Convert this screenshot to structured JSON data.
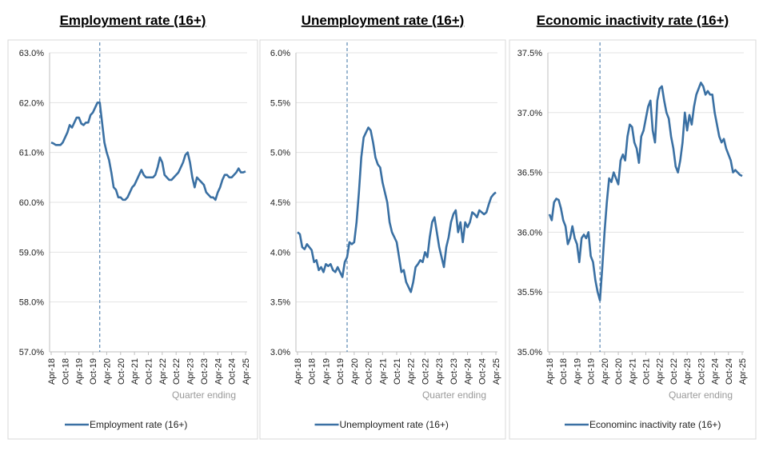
{
  "chart_data": [
    {
      "type": "line",
      "title": "Employment rate (16+)",
      "x_label": "Quarter ending",
      "categories": [
        "Apr-18",
        null,
        null,
        null,
        null,
        null,
        "Oct-18",
        null,
        null,
        null,
        null,
        null,
        "Apr-19",
        null,
        null,
        null,
        null,
        null,
        "Oct-19",
        null,
        null,
        null,
        null,
        null,
        "Apr-20",
        null,
        null,
        null,
        null,
        null,
        "Oct-20",
        null,
        null,
        null,
        null,
        null,
        "Apr-21",
        null,
        null,
        null,
        null,
        null,
        "Oct-21",
        null,
        null,
        null,
        null,
        null,
        "Apr-22",
        null,
        null,
        null,
        null,
        null,
        "Oct-22",
        null,
        null,
        null,
        null,
        null,
        "Apr-23",
        null,
        null,
        null,
        null,
        null,
        "Oct-23",
        null,
        null,
        null,
        null,
        null,
        "Apr-24",
        null,
        null,
        null,
        null,
        null,
        "Oct-24",
        null,
        null,
        null,
        null,
        null,
        "Apr-25"
      ],
      "series": [
        {
          "name": "Employment rate (16+)",
          "color": "#3a70a3",
          "values": [
            61.2,
            61.18,
            61.15,
            61.15,
            61.15,
            61.2,
            61.3,
            61.4,
            61.55,
            61.5,
            61.6,
            61.7,
            61.7,
            61.58,
            61.55,
            61.6,
            61.6,
            61.75,
            61.8,
            61.9,
            62.0,
            62.0,
            61.6,
            61.2,
            61.0,
            60.85,
            60.6,
            60.3,
            60.25,
            60.1,
            60.1,
            60.05,
            60.05,
            60.1,
            60.2,
            60.3,
            60.35,
            60.45,
            60.55,
            60.65,
            60.55,
            60.5,
            60.5,
            60.5,
            60.5,
            60.55,
            60.7,
            60.9,
            60.8,
            60.55,
            60.5,
            60.45,
            60.45,
            60.5,
            60.55,
            60.6,
            60.7,
            60.8,
            60.95,
            61.0,
            60.8,
            60.5,
            60.3,
            60.5,
            60.45,
            60.4,
            60.35,
            60.2,
            60.15,
            60.1,
            60.1,
            60.05,
            60.2,
            60.3,
            60.45,
            60.55,
            60.55,
            60.5,
            60.5,
            60.55,
            60.6,
            60.68,
            60.6,
            60.6,
            60.62
          ]
        }
      ],
      "ylim": [
        57,
        63
      ],
      "yticks": [
        {
          "value": 57,
          "label": "57.0%"
        },
        {
          "value": 58,
          "label": "58.0%"
        },
        {
          "value": 59,
          "label": "59.0%"
        },
        {
          "value": 60,
          "label": "60.0%"
        },
        {
          "value": 61,
          "label": "61.0%"
        },
        {
          "value": 62,
          "label": "62.0%"
        },
        {
          "value": 63,
          "label": "63.0%"
        }
      ],
      "grid": true,
      "vline_index": 21,
      "legend": "bottom"
    },
    {
      "type": "line",
      "title": "Unemployment rate (16+)",
      "x_label": "Quarter ending",
      "categories": [
        "Apr-18",
        null,
        null,
        null,
        null,
        null,
        "Oct-18",
        null,
        null,
        null,
        null,
        null,
        "Apr-19",
        null,
        null,
        null,
        null,
        null,
        "Oct-19",
        null,
        null,
        null,
        null,
        null,
        "Apr-20",
        null,
        null,
        null,
        null,
        null,
        "Oct-20",
        null,
        null,
        null,
        null,
        null,
        "Apr-21",
        null,
        null,
        null,
        null,
        null,
        "Oct-21",
        null,
        null,
        null,
        null,
        null,
        "Apr-22",
        null,
        null,
        null,
        null,
        null,
        "Oct-22",
        null,
        null,
        null,
        null,
        null,
        "Apr-23",
        null,
        null,
        null,
        null,
        null,
        "Oct-23",
        null,
        null,
        null,
        null,
        null,
        "Apr-24",
        null,
        null,
        null,
        null,
        null,
        "Oct-24",
        null,
        null,
        null,
        null,
        null,
        "Apr-25"
      ],
      "series": [
        {
          "name": "Unemployment rate (16+)",
          "color": "#3a70a3",
          "values": [
            4.2,
            4.18,
            4.05,
            4.03,
            4.08,
            4.05,
            4.02,
            3.9,
            3.92,
            3.82,
            3.85,
            3.8,
            3.88,
            3.86,
            3.88,
            3.82,
            3.8,
            3.85,
            3.8,
            3.75,
            3.9,
            3.95,
            4.1,
            4.08,
            4.1,
            4.3,
            4.6,
            4.95,
            5.15,
            5.2,
            5.25,
            5.22,
            5.1,
            4.95,
            4.88,
            4.85,
            4.7,
            4.6,
            4.5,
            4.3,
            4.2,
            4.15,
            4.1,
            3.95,
            3.8,
            3.82,
            3.7,
            3.65,
            3.6,
            3.7,
            3.85,
            3.88,
            3.92,
            3.9,
            4.0,
            3.95,
            4.15,
            4.3,
            4.35,
            4.2,
            4.05,
            3.95,
            3.85,
            4.05,
            4.15,
            4.3,
            4.38,
            4.42,
            4.2,
            4.3,
            4.1,
            4.3,
            4.25,
            4.3,
            4.4,
            4.38,
            4.35,
            4.42,
            4.4,
            4.38,
            4.4,
            4.48,
            4.55,
            4.58,
            4.6
          ]
        }
      ],
      "ylim": [
        3,
        6
      ],
      "yticks": [
        {
          "value": 3,
          "label": "3.0%"
        },
        {
          "value": 3.5,
          "label": "3.5%"
        },
        {
          "value": 4,
          "label": "4.0%"
        },
        {
          "value": 4.5,
          "label": "4.5%"
        },
        {
          "value": 5,
          "label": "5.0%"
        },
        {
          "value": 5.5,
          "label": "5.5%"
        },
        {
          "value": 6,
          "label": "6.0%"
        }
      ],
      "grid": true,
      "vline_index": 21,
      "legend": "bottom"
    },
    {
      "type": "line",
      "title": "Economic inactivity rate (16+)",
      "x_label": "Quarter ending",
      "categories": [
        "Apr-18",
        null,
        null,
        null,
        null,
        null,
        "Oct-18",
        null,
        null,
        null,
        null,
        null,
        "Apr-19",
        null,
        null,
        null,
        null,
        null,
        "Oct-19",
        null,
        null,
        null,
        null,
        null,
        "Apr-20",
        null,
        null,
        null,
        null,
        null,
        "Oct-20",
        null,
        null,
        null,
        null,
        null,
        "Apr-21",
        null,
        null,
        null,
        null,
        null,
        "Oct-21",
        null,
        null,
        null,
        null,
        null,
        "Apr-22",
        null,
        null,
        null,
        null,
        null,
        "Oct-22",
        null,
        null,
        null,
        null,
        null,
        "Apr-23",
        null,
        null,
        null,
        null,
        null,
        "Oct-23",
        null,
        null,
        null,
        null,
        null,
        "Apr-24",
        null,
        null,
        null,
        null,
        null,
        "Oct-24",
        null,
        null,
        null,
        null,
        null,
        "Apr-25"
      ],
      "series": [
        {
          "name": "Econominc inactivity rate (16+)",
          "color": "#3a70a3",
          "values": [
            36.15,
            36.1,
            36.25,
            36.28,
            36.27,
            36.2,
            36.1,
            36.05,
            35.9,
            35.95,
            36.05,
            35.95,
            35.9,
            35.75,
            35.95,
            35.98,
            35.95,
            36.0,
            35.8,
            35.75,
            35.6,
            35.5,
            35.43,
            35.7,
            36.0,
            36.25,
            36.45,
            36.42,
            36.5,
            36.45,
            36.4,
            36.6,
            36.65,
            36.6,
            36.8,
            36.9,
            36.88,
            36.75,
            36.7,
            36.58,
            36.8,
            36.85,
            36.95,
            37.05,
            37.1,
            36.85,
            36.75,
            37.1,
            37.2,
            37.22,
            37.1,
            37.0,
            36.95,
            36.8,
            36.7,
            36.55,
            36.5,
            36.6,
            36.75,
            37.0,
            36.85,
            36.98,
            36.9,
            37.05,
            37.15,
            37.2,
            37.25,
            37.22,
            37.15,
            37.18,
            37.15,
            37.15,
            37.0,
            36.9,
            36.8,
            36.75,
            36.78,
            36.7,
            36.65,
            36.6,
            36.5,
            36.52,
            36.5,
            36.48,
            36.47
          ]
        }
      ],
      "ylim": [
        35,
        37.5
      ],
      "yticks": [
        {
          "value": 35,
          "label": "35.0%"
        },
        {
          "value": 35.5,
          "label": "35.5%"
        },
        {
          "value": 36,
          "label": "36.0%"
        },
        {
          "value": 36.5,
          "label": "36.5%"
        },
        {
          "value": 37,
          "label": "37.0%"
        },
        {
          "value": 37.5,
          "label": "37.5%"
        }
      ],
      "grid": true,
      "vline_index": 22,
      "legend": "bottom"
    }
  ]
}
